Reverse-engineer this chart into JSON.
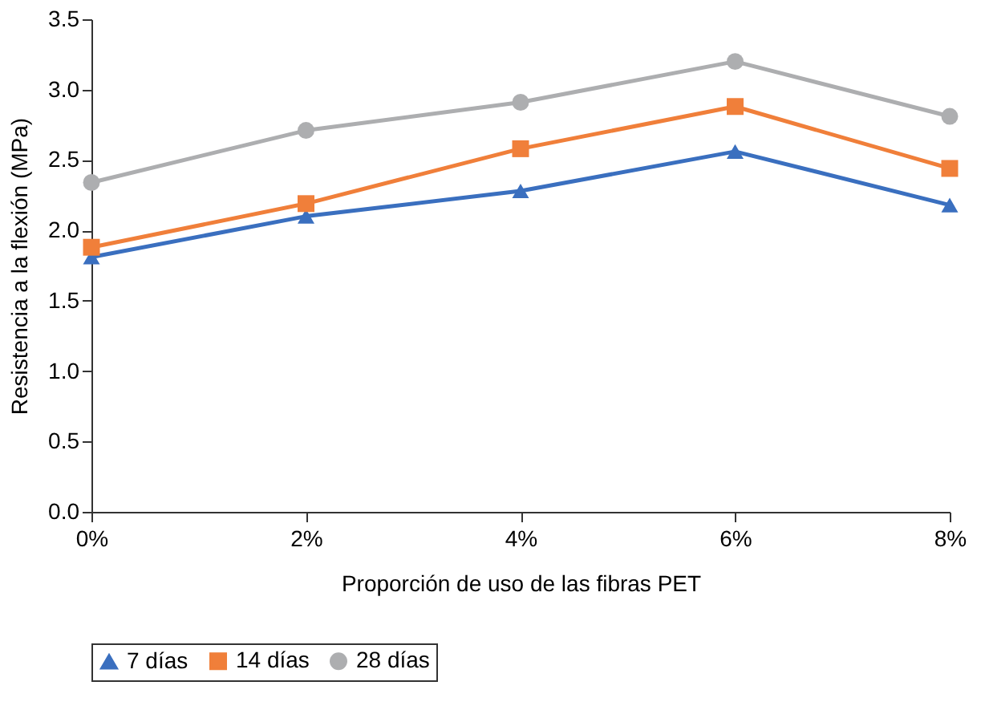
{
  "chart_data": {
    "type": "line",
    "xlabel": "Proporción de uso de las fibras PET",
    "ylabel": "Resistencia a la flexión (MPa)",
    "categories": [
      "0%",
      "2%",
      "4%",
      "6%",
      "8%"
    ],
    "series": [
      {
        "name": "7 días",
        "color": "#3a6fbf",
        "marker": "triangle",
        "values": [
          1.81,
          2.1,
          2.28,
          2.56,
          2.18
        ]
      },
      {
        "name": "14 días",
        "color": "#f07f3a",
        "marker": "square",
        "values": [
          1.88,
          2.19,
          2.58,
          2.88,
          2.44
        ]
      },
      {
        "name": "28 días",
        "color": "#adaeb0",
        "marker": "circle",
        "values": [
          2.34,
          2.71,
          2.91,
          3.2,
          2.81
        ]
      }
    ],
    "ylim": [
      0,
      3.5
    ],
    "yticks": [
      {
        "value": 0,
        "label": "0.0"
      },
      0.5,
      {
        "value": 1,
        "label": "1.0"
      },
      1.5,
      {
        "value": 2,
        "label": "2.0"
      },
      2.5,
      {
        "value": 3,
        "label": "3.0"
      },
      3.5
    ],
    "grid": false,
    "legend": "bottom",
    "line_style": "solid"
  }
}
